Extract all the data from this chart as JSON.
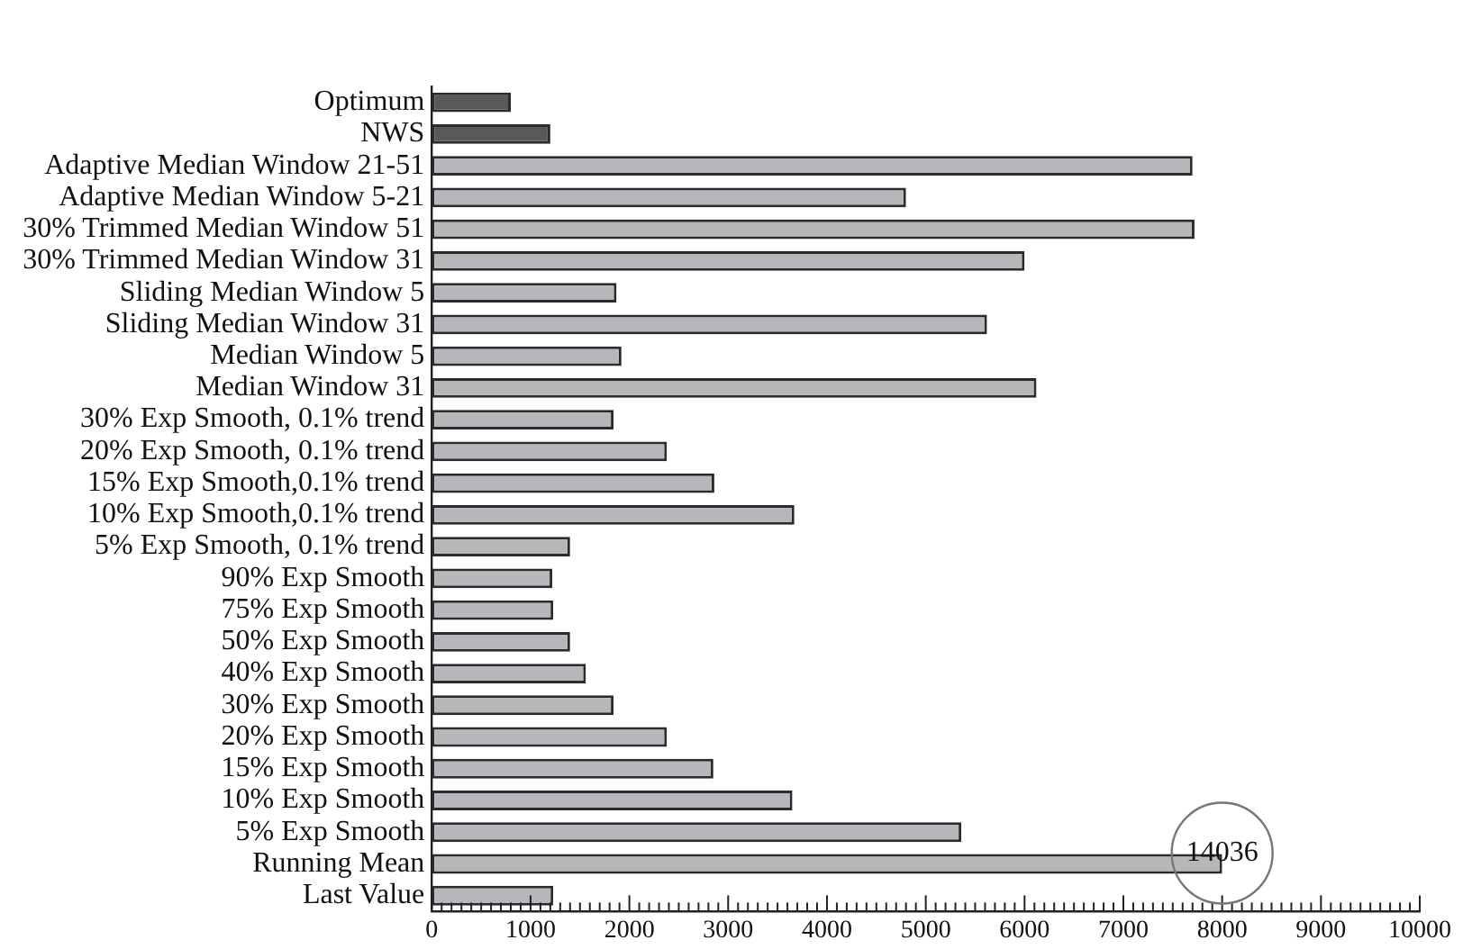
{
  "chart_data": {
    "type": "bar",
    "orientation": "horizontal",
    "categories": [
      "Optimum",
      "NWS",
      "Adaptive Median Window 21-51",
      "Adaptive Median Window 5-21",
      "30% Trimmed Median Window 51",
      "30% Trimmed Median Window 31",
      "Sliding Median Window 5",
      "Sliding Median Window 31",
      "Median Window 5",
      "Median Window 31",
      "30% Exp Smooth, 0.1% trend",
      "20% Exp Smooth, 0.1% trend",
      "15% Exp Smooth,0.1% trend",
      "10% Exp Smooth,0.1% trend",
      "5% Exp Smooth, 0.1% trend",
      "90% Exp Smooth",
      "75% Exp Smooth",
      "50% Exp Smooth",
      "40% Exp Smooth",
      "30% Exp Smooth",
      "20% Exp Smooth",
      "15% Exp Smooth",
      "10% Exp Smooth",
      "5% Exp Smooth",
      "Running Mean",
      "Last Value"
    ],
    "values": [
      800,
      1200,
      7700,
      4800,
      7720,
      6000,
      1870,
      5620,
      1920,
      6120,
      1840,
      2380,
      2860,
      3670,
      1400,
      1220,
      1230,
      1400,
      1560,
      1840,
      2380,
      2850,
      3650,
      5360,
      8000,
      1230
    ],
    "colors": [
      "#595959",
      "#595959",
      "#b6b7bb",
      "#b6b7bb",
      "#b6b7bb",
      "#b6b7bb",
      "#b6b7bb",
      "#b6b7bb",
      "#b6b7bb",
      "#b6b7bb",
      "#b6b7bb",
      "#b6b7bb",
      "#b6b7bb",
      "#b6b7bb",
      "#b6b7bb",
      "#b6b7bb",
      "#b6b7bb",
      "#b6b7bb",
      "#b6b7bb",
      "#b6b7bb",
      "#b6b7bb",
      "#b6b7bb",
      "#b6b7bb",
      "#b6b7bb",
      "#b6b7bb",
      "#b6b7bb"
    ],
    "xlim": [
      0,
      10000
    ],
    "xticks": [
      0,
      {
        "value": 100,
        "label": null
      },
      {
        "value": 200,
        "label": null
      },
      {
        "value": 300,
        "label": null
      },
      {
        "value": 400,
        "label": null
      },
      {
        "value": 500,
        "label": null
      },
      {
        "value": 600,
        "label": null
      },
      {
        "value": 700,
        "label": null
      },
      {
        "value": 800,
        "label": null
      },
      {
        "value": 900,
        "label": null
      },
      1000,
      {
        "value": 1100,
        "label": null
      },
      {
        "value": 1200,
        "label": null
      },
      {
        "value": 1300,
        "label": null
      },
      {
        "value": 1400,
        "label": null
      },
      {
        "value": 1500,
        "label": null
      },
      {
        "value": 1600,
        "label": null
      },
      {
        "value": 1700,
        "label": null
      },
      {
        "value": 1800,
        "label": null
      },
      {
        "value": 1900,
        "label": null
      },
      2000,
      {
        "value": 2100,
        "label": null
      },
      {
        "value": 2200,
        "label": null
      },
      {
        "value": 2300,
        "label": null
      },
      {
        "value": 2400,
        "label": null
      },
      {
        "value": 2500,
        "label": null
      },
      {
        "value": 2600,
        "label": null
      },
      {
        "value": 2700,
        "label": null
      },
      {
        "value": 2800,
        "label": null
      },
      {
        "value": 2900,
        "label": null
      },
      3000,
      {
        "value": 3100,
        "label": null
      },
      {
        "value": 3200,
        "label": null
      },
      {
        "value": 3300,
        "label": null
      },
      {
        "value": 3400,
        "label": null
      },
      {
        "value": 3500,
        "label": null
      },
      {
        "value": 3600,
        "label": null
      },
      {
        "value": 3700,
        "label": null
      },
      {
        "value": 3800,
        "label": null
      },
      {
        "value": 3900,
        "label": null
      },
      4000,
      {
        "value": 4100,
        "label": null
      },
      {
        "value": 4200,
        "label": null
      },
      {
        "value": 4300,
        "label": null
      },
      {
        "value": 4400,
        "label": null
      },
      {
        "value": 4500,
        "label": null
      },
      {
        "value": 4600,
        "label": null
      },
      {
        "value": 4700,
        "label": null
      },
      {
        "value": 4800,
        "label": null
      },
      {
        "value": 4900,
        "label": null
      },
      5000,
      {
        "value": 5100,
        "label": null
      },
      {
        "value": 5200,
        "label": null
      },
      {
        "value": 5300,
        "label": null
      },
      {
        "value": 5400,
        "label": null
      },
      {
        "value": 5500,
        "label": null
      },
      {
        "value": 5600,
        "label": null
      },
      {
        "value": 5700,
        "label": null
      },
      {
        "value": 5800,
        "label": null
      },
      {
        "value": 5900,
        "label": null
      },
      6000,
      {
        "value": 6100,
        "label": null
      },
      {
        "value": 6200,
        "label": null
      },
      {
        "value": 6300,
        "label": null
      },
      {
        "value": 6400,
        "label": null
      },
      {
        "value": 6500,
        "label": null
      },
      {
        "value": 6600,
        "label": null
      },
      {
        "value": 6700,
        "label": null
      },
      {
        "value": 6800,
        "label": null
      },
      {
        "value": 6900,
        "label": null
      },
      7000,
      {
        "value": 7100,
        "label": null
      },
      {
        "value": 7200,
        "label": null
      },
      {
        "value": 7300,
        "label": null
      },
      {
        "value": 7400,
        "label": null
      },
      {
        "value": 7500,
        "label": null
      },
      {
        "value": 7600,
        "label": null
      },
      {
        "value": 7700,
        "label": null
      },
      {
        "value": 7800,
        "label": null
      },
      {
        "value": 7900,
        "label": null
      },
      8000,
      {
        "value": 8100,
        "label": null
      },
      {
        "value": 8200,
        "label": null
      },
      {
        "value": 8300,
        "label": null
      },
      {
        "value": 8400,
        "label": null
      },
      {
        "value": 8500,
        "label": null
      },
      {
        "value": 8600,
        "label": null
      },
      {
        "value": 8700,
        "label": null
      },
      {
        "value": 8800,
        "label": null
      },
      {
        "value": 8900,
        "label": null
      },
      9000,
      {
        "value": 9100,
        "label": null
      },
      {
        "value": 9200,
        "label": null
      },
      {
        "value": 9300,
        "label": null
      },
      {
        "value": 9400,
        "label": null
      },
      {
        "value": 9500,
        "label": null
      },
      {
        "value": 9600,
        "label": null
      },
      {
        "value": 9700,
        "label": null
      },
      {
        "value": 9800,
        "label": null
      },
      {
        "value": 9900,
        "label": null
      },
      10000
    ],
    "annotations": [
      {
        "text": "14036",
        "x": 8000,
        "y": "Running Mean"
      }
    ]
  }
}
